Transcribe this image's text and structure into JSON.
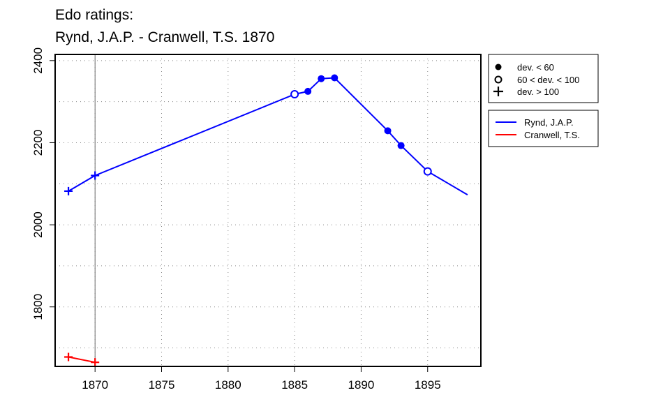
{
  "chart_data": {
    "type": "line",
    "title_lines": [
      "Edo ratings:",
      "Rynd, J.A.P. - Cranwell, T.S. 1870"
    ],
    "xlabel": "",
    "ylabel": "",
    "xlim": [
      1867,
      1899
    ],
    "ylim": [
      1655,
      2415
    ],
    "x_ticks": [
      1870,
      1875,
      1880,
      1885,
      1890,
      1895
    ],
    "y_ticks": [
      1800,
      2000,
      2200,
      2400
    ],
    "grid": true,
    "grid_style": "dotted",
    "reference_x": 1870,
    "series": [
      {
        "name": "Rynd, J.A.P.",
        "color": "#0000ff",
        "points": [
          {
            "x": 1868,
            "y": 2082,
            "dev": "high"
          },
          {
            "x": 1870,
            "y": 2120,
            "dev": "high"
          },
          {
            "x": 1885,
            "y": 2318,
            "dev": "mid"
          },
          {
            "x": 1886,
            "y": 2325,
            "dev": "low"
          },
          {
            "x": 1887,
            "y": 2356,
            "dev": "low"
          },
          {
            "x": 1888,
            "y": 2358,
            "dev": "low"
          },
          {
            "x": 1892,
            "y": 2229,
            "dev": "low"
          },
          {
            "x": 1893,
            "y": 2193,
            "dev": "low"
          },
          {
            "x": 1895,
            "y": 2130,
            "dev": "mid"
          },
          {
            "x": 1898,
            "y": 2073,
            "dev": "none"
          }
        ]
      },
      {
        "name": "Cranwell, T.S.",
        "color": "#ff0000",
        "points": [
          {
            "x": 1868,
            "y": 1678,
            "dev": "high"
          },
          {
            "x": 1870,
            "y": 1665,
            "dev": "high"
          }
        ]
      }
    ],
    "legend_symbols": [
      {
        "symbol": "filled-circle",
        "label": "dev. < 60"
      },
      {
        "symbol": "open-circle",
        "label": "60 < dev. < 100"
      },
      {
        "symbol": "plus",
        "label": "dev. > 100"
      }
    ],
    "legend_placement": "right-top"
  }
}
